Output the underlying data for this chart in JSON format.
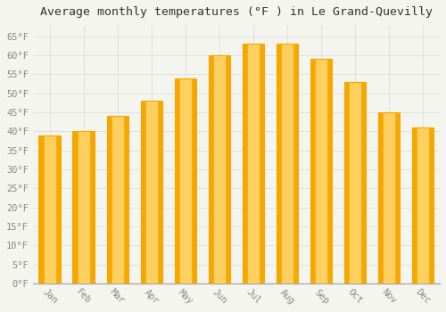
{
  "title": "Average monthly temperatures (°F ) in Le Grand-Quevilly",
  "months": [
    "Jan",
    "Feb",
    "Mar",
    "Apr",
    "May",
    "Jun",
    "Jul",
    "Aug",
    "Sep",
    "Oct",
    "Nov",
    "Dec"
  ],
  "values": [
    39,
    40,
    44,
    48,
    54,
    60,
    63,
    63,
    59,
    53,
    45,
    41
  ],
  "bar_color_center": "#FFD966",
  "bar_color_edge": "#F5A800",
  "background_color": "#F5F5F0",
  "plot_bg_color": "#F5F5F0",
  "grid_color": "#DDDDDD",
  "ylim": [
    0,
    68
  ],
  "yticks": [
    0,
    5,
    10,
    15,
    20,
    25,
    30,
    35,
    40,
    45,
    50,
    55,
    60,
    65
  ],
  "ytick_labels": [
    "0°F",
    "5°F",
    "10°F",
    "15°F",
    "20°F",
    "25°F",
    "30°F",
    "35°F",
    "40°F",
    "45°F",
    "50°F",
    "55°F",
    "60°F",
    "65°F"
  ],
  "title_fontsize": 9.5,
  "tick_fontsize": 7.5,
  "font_family": "monospace",
  "bar_width": 0.65,
  "xlabel_rotation": -45
}
